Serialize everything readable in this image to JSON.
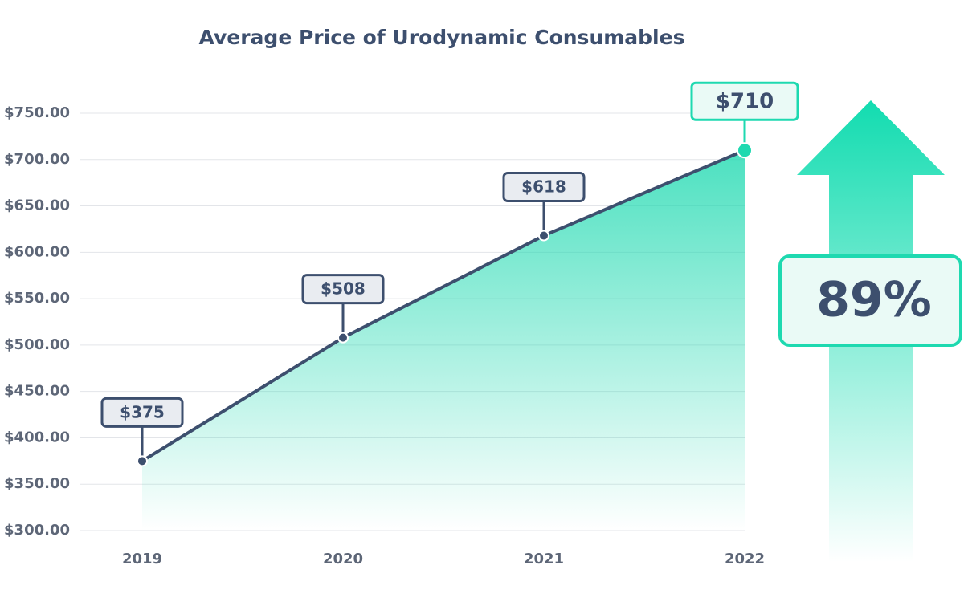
{
  "chart_data": {
    "type": "area-line",
    "title": "Average Price of Urodynamic Consumables",
    "categories": [
      "2019",
      "2020",
      "2021",
      "2022"
    ],
    "values": [
      375,
      508,
      618,
      710
    ],
    "value_labels": [
      "$375",
      "$508",
      "$618",
      "$710"
    ],
    "color": "#3d4f6e",
    "fill_color": "#1ed9b0",
    "highlight_color": "#1ed9b0",
    "ylim": [
      300,
      750
    ],
    "yticks": [
      {
        "value": 300,
        "label": "$300.00"
      },
      {
        "value": 350,
        "label": "$350.00"
      },
      {
        "value": 400,
        "label": "$400.00"
      },
      {
        "value": 450,
        "label": "$450.00"
      },
      {
        "value": 500,
        "label": "$500.00"
      },
      {
        "value": 550,
        "label": "$550.00"
      },
      {
        "value": 600,
        "label": "$600.00"
      },
      {
        "value": 650,
        "label": "$650.00"
      },
      {
        "value": 700,
        "label": "$700.00"
      },
      {
        "value": 750,
        "label": "$750.00"
      }
    ],
    "grid": true,
    "annotation": "89%"
  }
}
